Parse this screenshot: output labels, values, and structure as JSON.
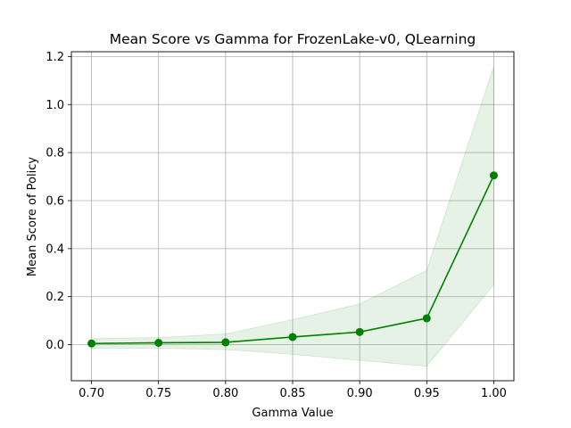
{
  "chart_data": {
    "type": "line",
    "title": "Mean Score vs Gamma for FrozenLake-v0, QLearning",
    "xlabel": "Gamma Value",
    "ylabel": "Mean Score of Policy",
    "x": [
      0.7,
      0.75,
      0.8,
      0.85,
      0.9,
      0.95,
      1.0
    ],
    "x_tick_labels": [
      "0.70",
      "0.75",
      "0.80",
      "0.85",
      "0.90",
      "0.95",
      "1.00"
    ],
    "y_ticks": [
      0.0,
      0.2,
      0.4,
      0.6,
      0.8,
      1.0,
      1.2
    ],
    "y_tick_labels": [
      "0.0",
      "0.2",
      "0.4",
      "0.6",
      "0.8",
      "1.0",
      "1.2"
    ],
    "xlim": [
      0.685,
      1.015
    ],
    "ylim": [
      -0.15,
      1.22
    ],
    "grid": true,
    "series": [
      {
        "values": [
          0.005,
          0.008,
          0.01,
          0.032,
          0.053,
          0.11,
          0.705
        ],
        "upper": [
          0.025,
          0.03,
          0.045,
          0.105,
          0.17,
          0.31,
          1.16
        ],
        "lower": [
          -0.015,
          -0.015,
          -0.02,
          -0.04,
          -0.065,
          -0.09,
          0.25
        ],
        "color": "#008000",
        "band_color": "#008000",
        "band_opacity": 0.1
      }
    ]
  }
}
